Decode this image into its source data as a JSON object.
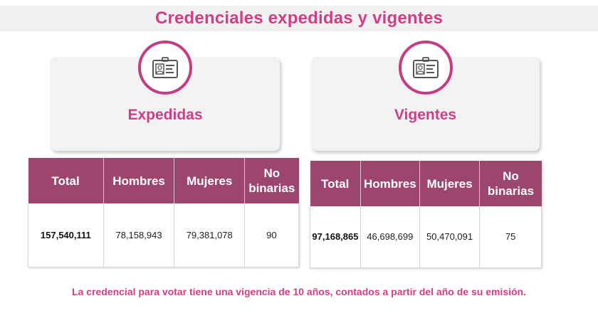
{
  "header": {
    "title": "Credenciales expedidas y vigentes"
  },
  "colors": {
    "accent": "#d23d86",
    "table_header": "#9c456d",
    "card_bg": "#f2f2f2"
  },
  "panels": [
    {
      "icon": "id-card-icon",
      "label": "Expedidas",
      "columns": [
        "Total",
        "Hombres",
        "Mujeres",
        "No binarias"
      ],
      "row": [
        "157,540,111",
        "78,158,943",
        "79,381,078",
        "90"
      ]
    },
    {
      "icon": "id-card-icon",
      "label": "Vigentes",
      "columns": [
        "Total",
        "Hombres",
        "Mujeres",
        "No binarias"
      ],
      "row": [
        "97,168,865",
        "46,698,699",
        "50,470,091",
        "75"
      ]
    }
  ],
  "footer": {
    "note": "La credencial para votar tiene una vigencia de 10 años, contados a partir del año de su emisión."
  }
}
